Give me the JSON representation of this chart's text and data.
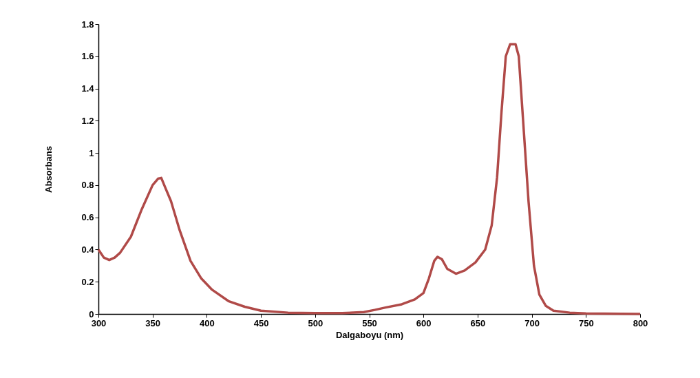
{
  "chart_data": {
    "type": "line",
    "xlabel": "Dalgaboyu (nm)",
    "ylabel": "Absorbans",
    "xlim": [
      300,
      800
    ],
    "xticks": [
      300,
      350,
      400,
      450,
      500,
      550,
      600,
      650,
      700,
      750,
      800
    ],
    "ylim": [
      0,
      1.8
    ],
    "yticks": [
      0,
      0.2,
      0.4,
      0.6,
      0.8,
      1,
      1.2,
      1.4,
      1.6,
      1.8
    ],
    "grid": false,
    "marker": "none",
    "line_style": "solid",
    "series": [
      {
        "color": "#b04a48",
        "x": [
          300,
          305,
          310,
          315,
          320,
          330,
          340,
          350,
          355,
          358,
          362,
          367,
          375,
          385,
          395,
          405,
          420,
          435,
          450,
          475,
          500,
          525,
          545,
          555,
          565,
          580,
          592,
          600,
          605,
          610,
          613,
          617,
          622,
          630,
          638,
          648,
          657,
          663,
          668,
          672,
          676,
          680,
          685,
          688,
          692,
          697,
          702,
          707,
          713,
          720,
          735,
          750,
          800
        ],
        "values": [
          0.4,
          0.35,
          0.335,
          0.35,
          0.38,
          0.48,
          0.65,
          0.8,
          0.84,
          0.845,
          0.78,
          0.7,
          0.52,
          0.33,
          0.22,
          0.15,
          0.08,
          0.045,
          0.02,
          0.008,
          0.005,
          0.005,
          0.012,
          0.025,
          0.04,
          0.06,
          0.09,
          0.13,
          0.22,
          0.33,
          0.355,
          0.34,
          0.28,
          0.25,
          0.27,
          0.32,
          0.4,
          0.55,
          0.85,
          1.25,
          1.6,
          1.675,
          1.675,
          1.6,
          1.2,
          0.7,
          0.3,
          0.12,
          0.05,
          0.02,
          0.008,
          0.003,
          0
        ]
      }
    ]
  }
}
